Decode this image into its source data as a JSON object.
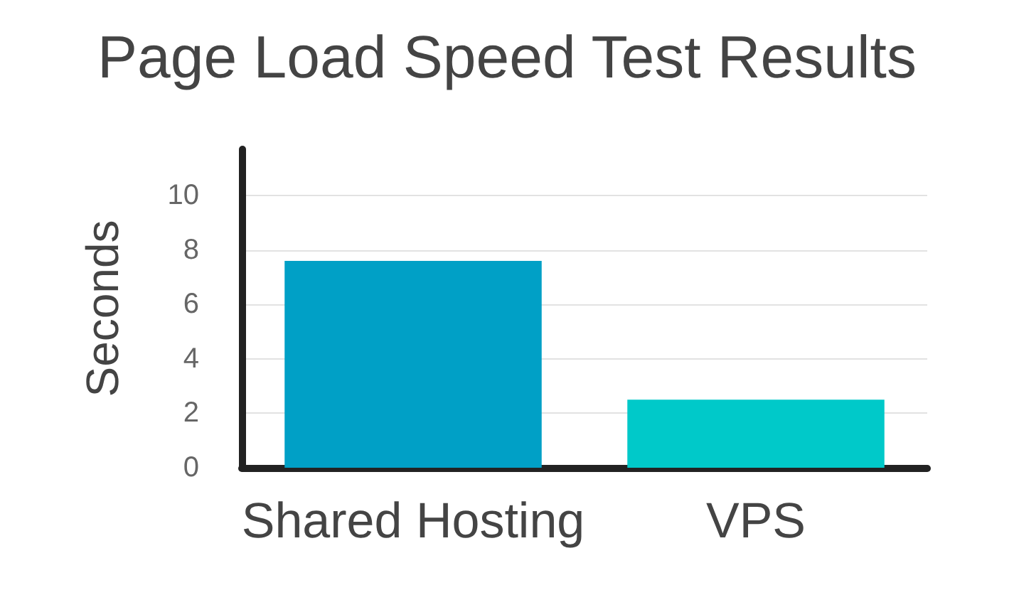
{
  "chart_data": {
    "type": "bar",
    "title": "Page Load Speed Test Results",
    "ylabel": "Seconds",
    "categories": [
      "Shared Hosting",
      "VPS"
    ],
    "values": [
      7.6,
      2.5
    ],
    "colors": [
      "#00a0c6",
      "#00c9c9"
    ],
    "ylim": [
      0,
      11.7
    ],
    "yticks": [
      0,
      2,
      4,
      6,
      8,
      10
    ],
    "grid": "y"
  }
}
